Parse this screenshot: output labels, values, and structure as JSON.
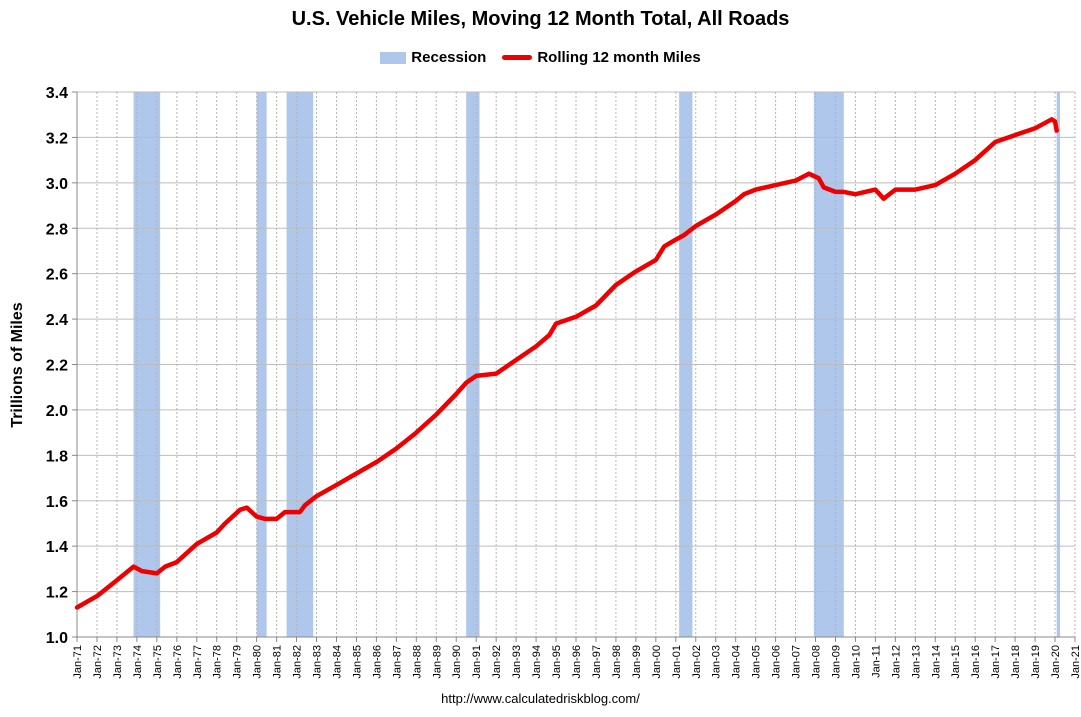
{
  "chart_data": {
    "type": "line",
    "title": "U.S. Vehicle Miles, Moving 12 Month Total, All Roads",
    "xlabel": "",
    "ylabel": "Trillions of Miles",
    "ylim": [
      1.0,
      3.4
    ],
    "yticks": [
      "1.0",
      "1.2",
      "1.4",
      "1.6",
      "1.8",
      "2.0",
      "2.2",
      "2.4",
      "2.6",
      "2.8",
      "3.0",
      "3.2",
      "3.4"
    ],
    "xticks": [
      "Jan-71",
      "Jan-72",
      "Jan-73",
      "Jan-74",
      "Jan-75",
      "Jan-76",
      "Jan-77",
      "Jan-78",
      "Jan-79",
      "Jan-80",
      "Jan-81",
      "Jan-82",
      "Jan-83",
      "Jan-84",
      "Jan-85",
      "Jan-86",
      "Jan-87",
      "Jan-88",
      "Jan-89",
      "Jan-90",
      "Jan-91",
      "Jan-92",
      "Jan-93",
      "Jan-94",
      "Jan-95",
      "Jan-96",
      "Jan-97",
      "Jan-98",
      "Jan-99",
      "Jan-00",
      "Jan-01",
      "Jan-02",
      "Jan-03",
      "Jan-04",
      "Jan-05",
      "Jan-06",
      "Jan-07",
      "Jan-08",
      "Jan-09",
      "Jan-10",
      "Jan-11",
      "Jan-12",
      "Jan-13",
      "Jan-14",
      "Jan-15",
      "Jan-16",
      "Jan-17",
      "Jan-18",
      "Jan-19",
      "Jan-20",
      "Jan-21"
    ],
    "grid": true,
    "legend_position": "top-center",
    "legend": [
      "Recession",
      "Rolling 12 month Miles"
    ],
    "recession_color": "#aec7ea",
    "line_color": "#ee0000",
    "recessions": [
      {
        "start": "1973-11",
        "end": "1975-03"
      },
      {
        "start": "1980-01",
        "end": "1980-07"
      },
      {
        "start": "1981-07",
        "end": "1982-11"
      },
      {
        "start": "1990-07",
        "end": "1991-03"
      },
      {
        "start": "2001-03",
        "end": "2001-11"
      },
      {
        "start": "2007-12",
        "end": "2009-06"
      },
      {
        "start": "2020-02",
        "end": "2020-04"
      }
    ],
    "series": [
      {
        "name": "Rolling 12 month Miles",
        "x": [
          "1971-01",
          "1972-01",
          "1973-01",
          "1973-11",
          "1974-04",
          "1975-01",
          "1975-06",
          "1976-01",
          "1977-01",
          "1978-01",
          "1978-06",
          "1979-03",
          "1979-07",
          "1980-01",
          "1980-06",
          "1981-01",
          "1981-06",
          "1981-10",
          "1982-03",
          "1982-06",
          "1983-01",
          "1984-01",
          "1985-01",
          "1986-01",
          "1987-01",
          "1988-01",
          "1989-01",
          "1990-01",
          "1990-07",
          "1991-01",
          "1992-01",
          "1993-01",
          "1994-01",
          "1994-09",
          "1995-01",
          "1996-01",
          "1997-01",
          "1998-01",
          "1999-01",
          "2000-01",
          "2000-06",
          "2001-01",
          "2001-06",
          "2002-01",
          "2003-01",
          "2004-01",
          "2004-06",
          "2005-01",
          "2006-01",
          "2007-01",
          "2007-09",
          "2008-03",
          "2008-06",
          "2009-01",
          "2009-06",
          "2010-01",
          "2011-01",
          "2011-06",
          "2012-01",
          "2013-01",
          "2014-01",
          "2015-01",
          "2016-01",
          "2017-01",
          "2018-01",
          "2019-01",
          "2019-11",
          "2020-01",
          "2020-02"
        ],
        "values": [
          1.13,
          1.18,
          1.25,
          1.31,
          1.29,
          1.28,
          1.31,
          1.33,
          1.41,
          1.46,
          1.5,
          1.56,
          1.57,
          1.53,
          1.52,
          1.52,
          1.55,
          1.55,
          1.55,
          1.58,
          1.62,
          1.67,
          1.72,
          1.77,
          1.83,
          1.9,
          1.98,
          2.07,
          2.12,
          2.15,
          2.16,
          2.22,
          2.28,
          2.33,
          2.38,
          2.41,
          2.46,
          2.55,
          2.61,
          2.66,
          2.72,
          2.75,
          2.77,
          2.81,
          2.86,
          2.92,
          2.95,
          2.97,
          2.99,
          3.01,
          3.04,
          3.02,
          2.98,
          2.96,
          2.96,
          2.95,
          2.97,
          2.93,
          2.97,
          2.97,
          2.99,
          3.04,
          3.1,
          3.18,
          3.21,
          3.24,
          3.28,
          3.27,
          3.23
        ]
      }
    ]
  },
  "footer": "http://www.calculatedriskblog.com/"
}
